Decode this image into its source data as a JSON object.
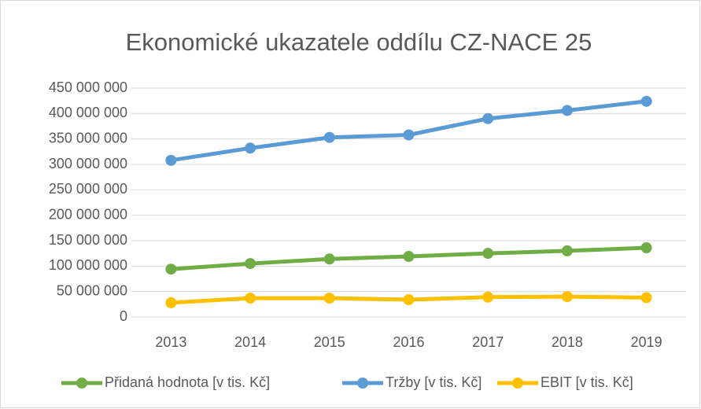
{
  "chart_data": {
    "type": "line",
    "title": "Ekonomické ukazatele oddílu CZ-NACE 25",
    "categories": [
      "2013",
      "2014",
      "2015",
      "2016",
      "2017",
      "2018",
      "2019"
    ],
    "series": [
      {
        "name": "Přidaná hodnota [v tis. Kč]",
        "color": "#70ad47",
        "values": [
          94000000,
          105000000,
          114000000,
          119000000,
          125000000,
          130000000,
          136000000
        ]
      },
      {
        "name": "Tržby [v tis. Kč]",
        "color": "#5b9bd5",
        "values": [
          308000000,
          332000000,
          353000000,
          358000000,
          390000000,
          406000000,
          424000000
        ]
      },
      {
        "name": "EBIT [v tis. Kč]",
        "color": "#ffc000",
        "values": [
          28000000,
          37000000,
          37000000,
          34000000,
          39000000,
          40000000,
          38000000
        ]
      }
    ],
    "ylim": [
      0,
      450000000
    ],
    "yticks": [
      0,
      {
        "value": 50000000,
        "label": "50 000 000"
      },
      {
        "value": 100000000,
        "label": "100 000 000"
      },
      {
        "value": 150000000,
        "label": "150 000 000"
      },
      {
        "value": 200000000,
        "label": "200 000 000"
      },
      {
        "value": 250000000,
        "label": "250 000 000"
      },
      {
        "value": 300000000,
        "label": "300 000 000"
      },
      {
        "value": 350000000,
        "label": "350 000 000"
      },
      {
        "value": 400000000,
        "label": "400 000 000"
      },
      {
        "value": 450000000,
        "label": "450 000 000"
      }
    ],
    "grid": true,
    "legend": "bottom"
  }
}
